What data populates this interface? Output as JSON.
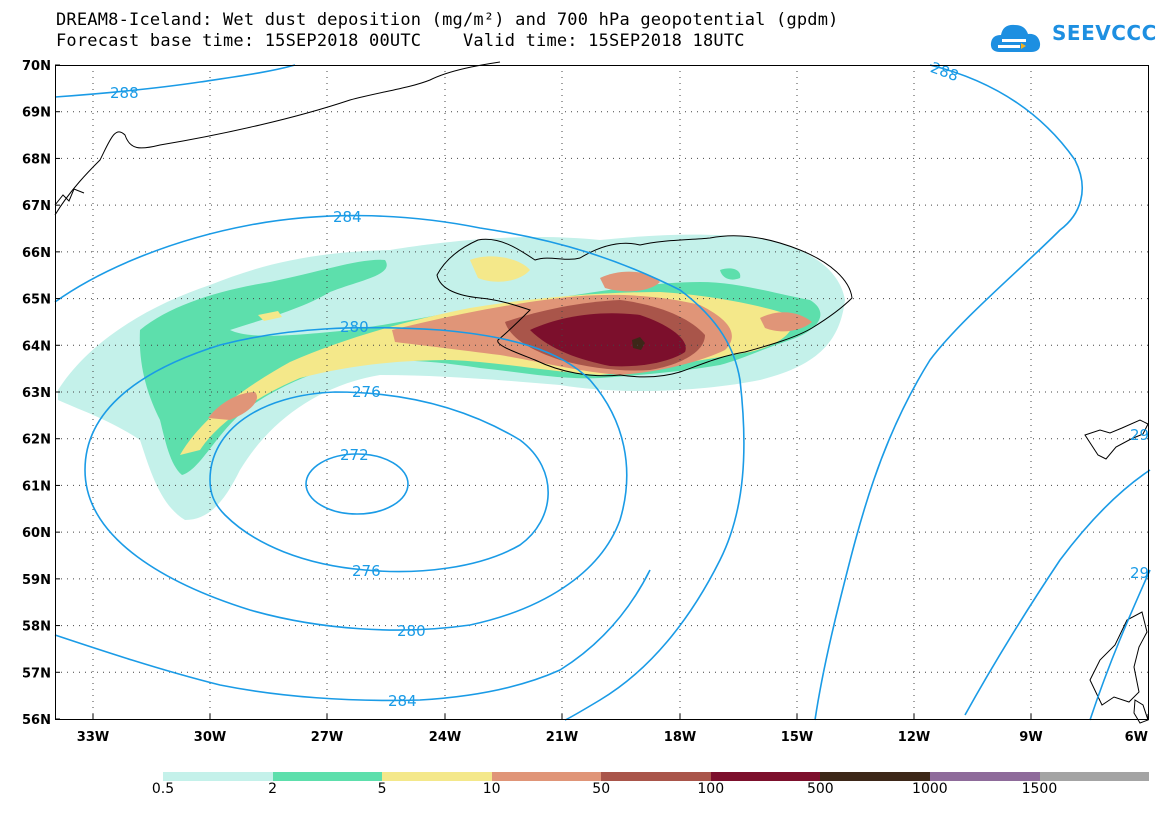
{
  "title": {
    "line1": "DREAM8-Iceland: Wet dust deposition (mg/m²) and 700 hPa geopotential (gpdm)",
    "line2": "Forecast base time: 15SEP2018 00UTC    Valid time: 15SEP2018 18UTC"
  },
  "logo": {
    "text": "SEEVCCC"
  },
  "map": {
    "lat_labels": [
      "70N",
      "69N",
      "68N",
      "67N",
      "66N",
      "65N",
      "64N",
      "63N",
      "62N",
      "61N",
      "60N",
      "59N",
      "58N",
      "57N",
      "56N"
    ],
    "lon_labels": [
      "33W",
      "30W",
      "27W",
      "24W",
      "21W",
      "18W",
      "15W",
      "12W",
      "9W",
      "6W"
    ],
    "contour_labels": [
      "288",
      "288",
      "284",
      "280",
      "276",
      "272",
      "276",
      "280",
      "284",
      "29",
      "29"
    ]
  },
  "legend": {
    "colors": [
      "#c4f1ea",
      "#5ddfac",
      "#f4e88a",
      "#e09578",
      "#a9554a",
      "#7c0f2c",
      "#3d2718",
      "#8e6b9a",
      "#a4a4a4"
    ],
    "labels": [
      "0.5",
      "2",
      "5",
      "10",
      "50",
      "100",
      "500",
      "1000",
      "1500"
    ]
  }
}
